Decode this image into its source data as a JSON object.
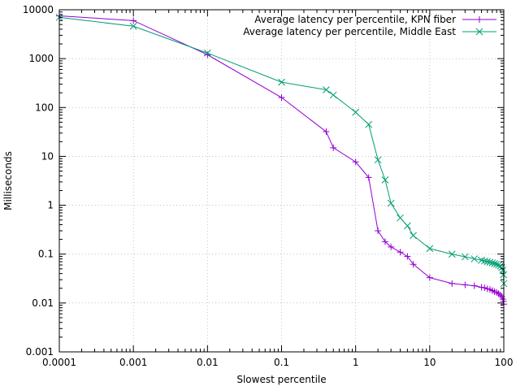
{
  "chart_data": {
    "type": "line",
    "xlabel": "Slowest percentile",
    "ylabel": "Milliseconds",
    "xscale": "log",
    "yscale": "log",
    "xlim": [
      0.0001,
      100
    ],
    "ylim": [
      0.001,
      10000
    ],
    "x_ticks": [
      {
        "value": 0.0001,
        "label": "0.0001"
      },
      {
        "value": 0.001,
        "label": "0.001"
      },
      {
        "value": 0.01,
        "label": "0.01"
      },
      {
        "value": 0.1,
        "label": "0.1"
      },
      {
        "value": 1,
        "label": "1"
      },
      {
        "value": 10,
        "label": "10"
      },
      {
        "value": 100,
        "label": "100"
      }
    ],
    "y_ticks": [
      {
        "value": 0.001,
        "label": "0.001"
      },
      {
        "value": 0.01,
        "label": "0.01"
      },
      {
        "value": 0.1,
        "label": "0.1"
      },
      {
        "value": 1,
        "label": "1"
      },
      {
        "value": 10,
        "label": "10"
      },
      {
        "value": 100,
        "label": "100"
      },
      {
        "value": 1000,
        "label": "1000"
      },
      {
        "value": 10000,
        "label": "10000"
      }
    ],
    "grid": true,
    "legend_position": "top-right",
    "series": [
      {
        "name": "Average latency per percentile, KPN fiber",
        "color": "#9400d3",
        "marker": "plus",
        "points": [
          [
            0.0001,
            7500
          ],
          [
            0.001,
            6000
          ],
          [
            0.01,
            1200
          ],
          [
            0.1,
            160
          ],
          [
            0.4,
            32
          ],
          [
            0.5,
            15
          ],
          [
            1,
            7.7
          ],
          [
            1.5,
            3.7
          ],
          [
            2,
            0.3
          ],
          [
            2.5,
            0.18
          ],
          [
            3,
            0.14
          ],
          [
            4,
            0.11
          ],
          [
            5,
            0.09
          ],
          [
            6,
            0.062
          ],
          [
            10,
            0.033
          ],
          [
            20,
            0.025
          ],
          [
            30,
            0.0235
          ],
          [
            40,
            0.0225
          ],
          [
            50,
            0.021
          ],
          [
            55,
            0.0205
          ],
          [
            60,
            0.0195
          ],
          [
            65,
            0.019
          ],
          [
            70,
            0.018
          ],
          [
            75,
            0.017
          ],
          [
            80,
            0.0165
          ],
          [
            85,
            0.0155
          ],
          [
            90,
            0.0145
          ],
          [
            94,
            0.0135
          ],
          [
            97,
            0.012
          ],
          [
            99,
            0.0108
          ],
          [
            100,
            0.0095
          ]
        ]
      },
      {
        "name": "Average latency per percentile, Middle East",
        "color": "#009e73",
        "marker": "cross",
        "points": [
          [
            0.0001,
            7000
          ],
          [
            0.001,
            4600
          ],
          [
            0.01,
            1300
          ],
          [
            0.1,
            330
          ],
          [
            0.4,
            230
          ],
          [
            0.5,
            180
          ],
          [
            1,
            80
          ],
          [
            1.5,
            45
          ],
          [
            2,
            8.5
          ],
          [
            2.5,
            3.3
          ],
          [
            3,
            1.1
          ],
          [
            4,
            0.55
          ],
          [
            5,
            0.38
          ],
          [
            6,
            0.24
          ],
          [
            10,
            0.13
          ],
          [
            20,
            0.1
          ],
          [
            30,
            0.088
          ],
          [
            40,
            0.08
          ],
          [
            50,
            0.075
          ],
          [
            55,
            0.072
          ],
          [
            60,
            0.07
          ],
          [
            65,
            0.068
          ],
          [
            70,
            0.066
          ],
          [
            75,
            0.064
          ],
          [
            80,
            0.062
          ],
          [
            85,
            0.06
          ],
          [
            90,
            0.057
          ],
          [
            94,
            0.053
          ],
          [
            97,
            0.047
          ],
          [
            99,
            0.038
          ],
          [
            100,
            0.025
          ]
        ]
      }
    ]
  }
}
